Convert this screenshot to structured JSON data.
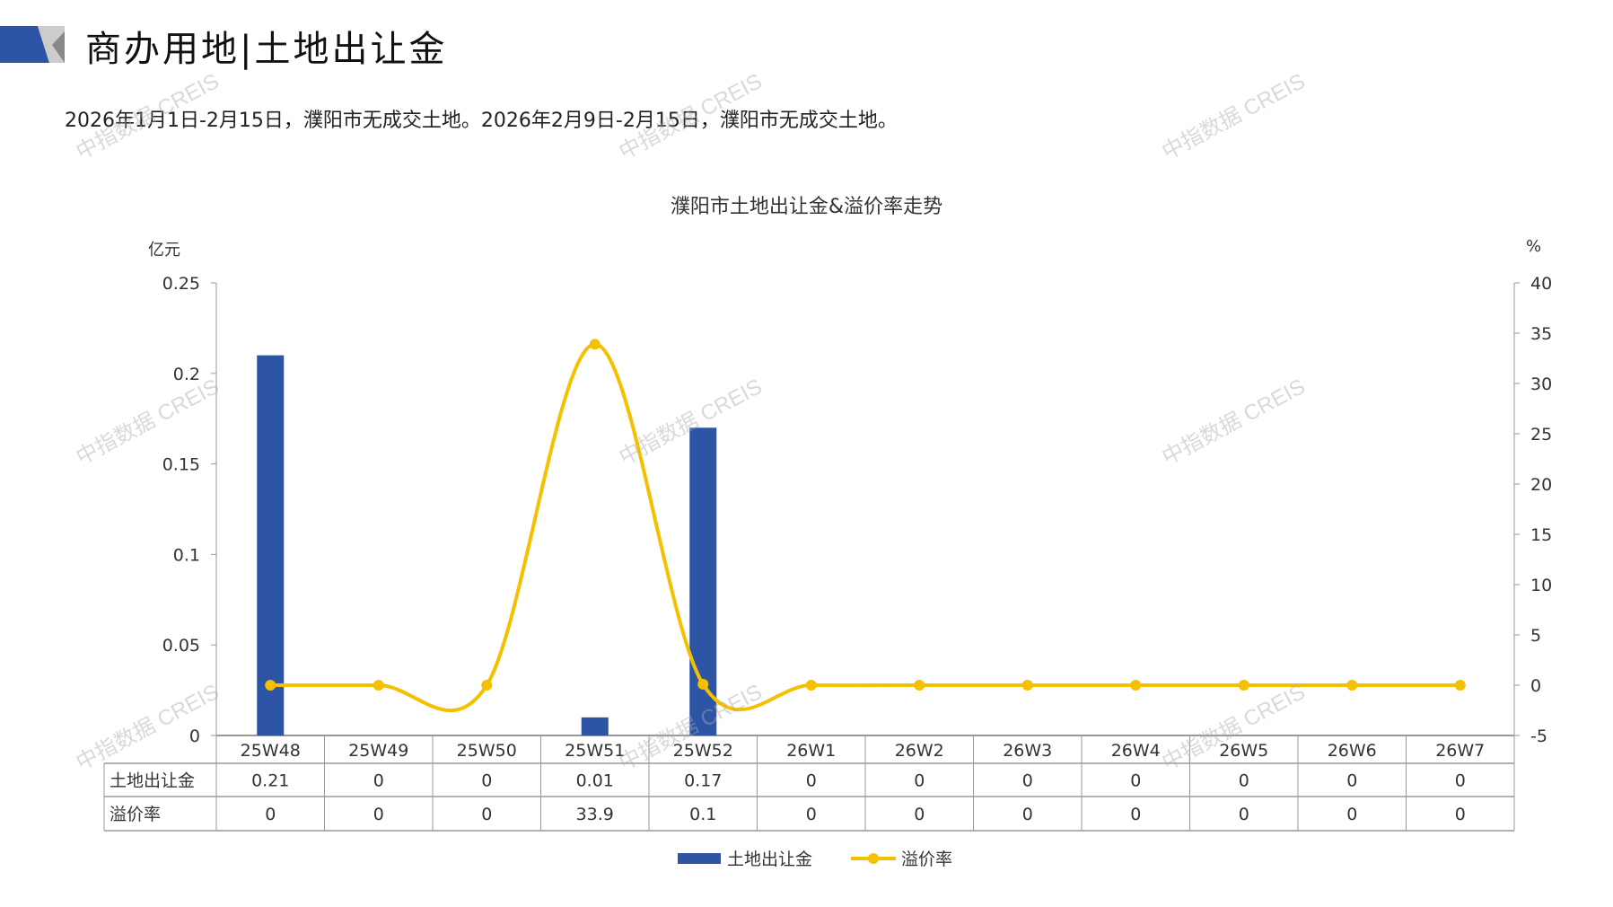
{
  "header": {
    "title": "商办用地|土地出让金",
    "subtitle": "2026年1月1日-2月15日，濮阳市无成交土地。2026年2月9日-2月15日，濮阳市无成交土地。"
  },
  "watermark": "中指数据 CREIS",
  "chart_data": {
    "type": "bar+line",
    "title": "濮阳市土地出让金&溢价率走势",
    "ylabel_left": "亿元",
    "ylabel_right": "%",
    "ylim_left": [
      0,
      0.25
    ],
    "yticks_left": [
      "0",
      "0.05",
      "0.1",
      "0.15",
      "0.2",
      "0.25"
    ],
    "ylim_right": [
      -5,
      40
    ],
    "yticks_right": [
      "-5",
      "0",
      "5",
      "10",
      "15",
      "20",
      "25",
      "30",
      "35",
      "40"
    ],
    "categories": [
      "25W48",
      "25W49",
      "25W50",
      "25W51",
      "25W52",
      "26W1",
      "26W2",
      "26W3",
      "26W4",
      "26W5",
      "26W6",
      "26W7"
    ],
    "series": [
      {
        "name": "土地出让金",
        "type": "bar",
        "axis": "left",
        "color": "#2E55A5",
        "values": [
          0.21,
          0,
          0,
          0.01,
          0.17,
          0,
          0,
          0,
          0,
          0,
          0,
          0
        ],
        "labels": [
          "0.21",
          "0",
          "0",
          "0.01",
          "0.17",
          "0",
          "0",
          "0",
          "0",
          "0",
          "0",
          "0"
        ]
      },
      {
        "name": "溢价率",
        "type": "line",
        "axis": "right",
        "smooth": true,
        "color": "#F5C000",
        "values": [
          0,
          0,
          0,
          33.9,
          0.1,
          0,
          0,
          0,
          0,
          0,
          0,
          0
        ],
        "labels": [
          "0",
          "0",
          "0",
          "33.9",
          "0.1",
          "0",
          "0",
          "0",
          "0",
          "0",
          "0",
          "0"
        ]
      }
    ],
    "legend": "bottom",
    "grid": false
  }
}
